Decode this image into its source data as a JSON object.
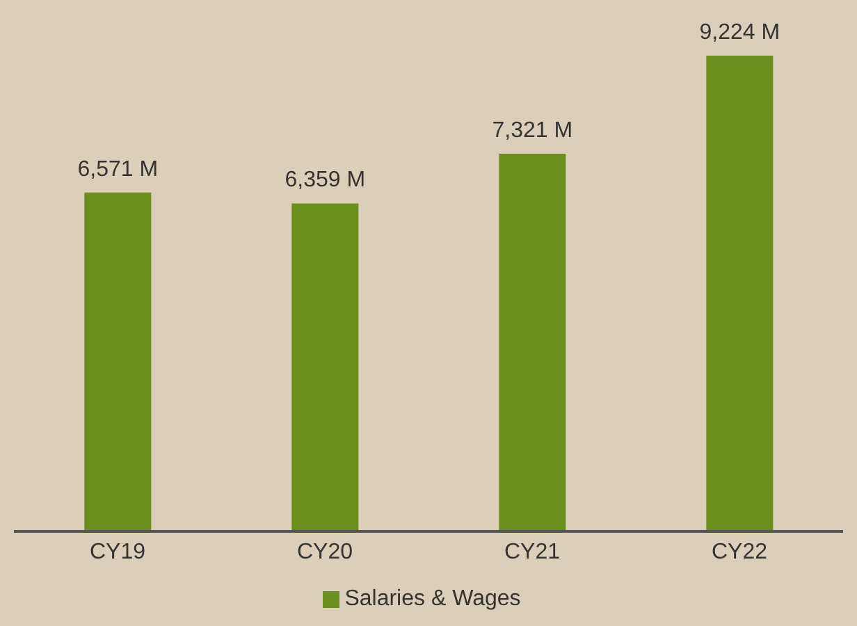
{
  "chart_data": {
    "type": "bar",
    "categories": [
      "CY19",
      "CY20",
      "CY21",
      "CY22"
    ],
    "series": [
      {
        "name": "Salaries & Wages",
        "color": "#6b8f1e",
        "values": [
          6571,
          6359,
          7321,
          9224
        ],
        "value_labels": [
          "6,571 M",
          "6,359 M",
          "7,321 M",
          "9,224 M"
        ]
      }
    ],
    "legend": "bottom",
    "grid": false
  }
}
